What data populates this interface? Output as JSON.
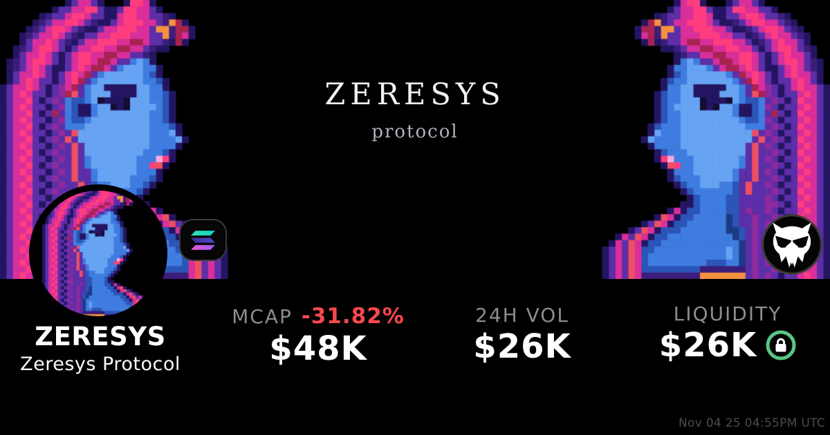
{
  "card": {
    "watermark": {
      "title": "ZERESYS",
      "subtitle": "protocol"
    },
    "token": {
      "symbol": "ZERESYS",
      "name": "Zeresys Protocol"
    },
    "stats": [
      {
        "label": "MCAP",
        "change": "-31.82%",
        "value": "$48K"
      },
      {
        "label": "24H VOL",
        "value": "$26K"
      },
      {
        "label": "LIQUIDITY",
        "value": "$26K",
        "locked": true
      }
    ],
    "timestamp": "Nov 04 25 04:55PM UTC",
    "colors": {
      "background": "#000000",
      "change_negative": "#f8484f",
      "label_gray": "#8d8d8d",
      "value_white": "#ffffff",
      "lock_green": "#57c784",
      "solana_green": "#27e3b0",
      "solana_purple": "#9a5cf0"
    },
    "icons": {
      "chain": "solana-icon",
      "platform": "owl-icon",
      "liquidity": "lock-icon"
    }
  },
  "pixel_art": {
    "palette": {
      "k": "#150d33",
      "n": "#241563",
      "p": "#3c1d7a",
      "v": "#5c2fa8",
      "m": "#8f2a9e",
      "M": "#d92f9b",
      "H": "#ff3d7f",
      "r": "#ef4f63",
      "R": "#a82350",
      "o": "#f59140",
      "b": "#3f7ce0",
      "B": "#66a3f2",
      "d": "#2c55b8",
      "D": "#1d3a86",
      "w": "#f9a8d8"
    },
    "rows": [
      "..........nvMMvn...nHHMn............",
      "........nvvMMHHvnnvHHMMvn...........",
      "......npvvMHHMvvnnMHHMMvvpn.........",
      ".....npvMMHHMvpnnvMHHHMMvpoRn.......",
      "....npvMHHMvpnnvMMHHHMMvoopRRn......",
      "...npvMMHMvpnvvMMHHHMMMvvopRMn......",
      "...nvMMHMvpnvMMHHHMMRRMvvpnRn.......",
      "..npvMHHMvnvMMHHMMRRMMvpnn..........",
      "..nvMMHMvnvMHHMMRRMMvvpn............",
      ".npvMHHMvnvMHHMRRMvvbBbn............",
      ".npvMHMvnnvMHMRRMvbBBBbbn...........",
      ".nvMMHMvnvMHMRvbBBBBBBbdn...........",
      ".nvMHMvvnvMHRvbBBBBBBBbbdn..........",
      "nvMMHMvnvmMRvbBBnnnnnBBbbn..........",
      "nvMHMvvnvmRrvbBBBnnnnBBbbdn.........",
      "nvMMHvnvmvbddbBknnnkBBBbbdn.........",
      "nvMHMvvnvmbdnnbBBknkBBBBbdn.........",
      "nvMMHvnvRvbdnnbBBBBBBBBbbdn.........",
      "nvMHMvvnvmbddbBBBBBBBBBbbdn.........",
      "nvMMHvnvmvbbbBBBBBBBBBBbbbdn........",
      "nvMHMvvnvmvrBBBBBBBBBBBbbbBn........",
      "nvMMHvnvmvrvBBBBBBBBBBBbbbbBn.......",
      "nvMHMvvnvmvrvBBBBBBBBBBbbbbn........",
      "nvMMHvnvmvvrvBBBBBBBBBbbbdn.........",
      "nvMHMvvnvmvrvbBBBBBBBbbbwHn.........",
      "nvMMHvnvmvvrvbBBBBBBBbbHrn..........",
      "nvMHMvvnvmvrvvbBBBBBBbbbn...........",
      "nvMMHvnvmvvrvvbBBBBBbbbdn...........",
      "nvMHMvvnvmvvrvdbbBBBbbdn............",
      "nvMMHvnvmvvvrvdbbbbbbdn.............",
      "nvMHMvvnvmvvvvddbbbbdn..............",
      "nvMMHvnvmmvvvvddbbbbdnn.............",
      "nvMHMvvnvmvvmvddbbbbddnMn...........",
      "nvMMHvnvmvvmvvdDbbbbbddnMrn.........",
      "nvMHMvvnvmvmvvdDbbbbbbddnMrvn.......",
      "nvMMHvnvmvvmvdDDbbbbbbbdddnMrvn.....",
      "nvMHMvvnvmvmvdDbbbbbbbbbbddnMrvMn...",
      "nvMMHvnvmvvmvDbbbbbbbbbbbbddnMrvMn..",
      "nvMHMvvnvmvmvDbBbbbbbbbbbbbddMrvMvn.",
      "nvMMHvnvmvvmvDbBbbbbbbbbbbbbdMrvMvn.",
      "nvMHMvvnvmvmvDbbdddbbbbbbbbbdMrvMvn.",
      "nvMMHvnvmvvmvpppppppdddddddddMrvMvn.",
      "nvMHMvvnvmvmvooooooopppppppppMrvMvn.",
      "nvMMHvnvmvvmvpvpvpvpvvvvvvvvvMrvMvn."
    ]
  }
}
